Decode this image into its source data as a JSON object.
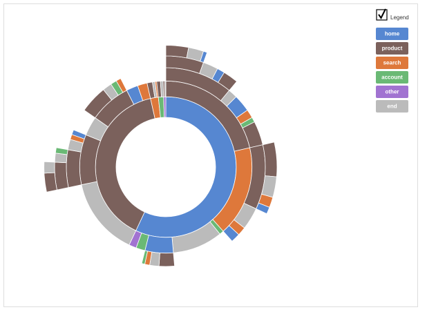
{
  "chart_data": {
    "type": "sunburst",
    "legend_title": "Legend",
    "legend": true,
    "categories": [
      "home",
      "product",
      "search",
      "account",
      "other",
      "end"
    ],
    "colors": [
      "#5687d1",
      "#7b615c",
      "#de783b",
      "#6ab975",
      "#a173d1",
      "#bbbbbb"
    ],
    "children": [
      {
        "name": "home",
        "value": 57,
        "children": [
          {
            "name": "product",
            "value": 21.4,
            "children": [
              {
                "name": "product",
                "value": 11,
                "children": [
                  {
                    "name": "product",
                    "value": 5.5,
                    "children": [
                      {
                        "name": "product",
                        "value": 3
                      },
                      {
                        "name": "end",
                        "value": 2
                      },
                      {
                        "name": "home",
                        "value": 0.5
                      }
                    ]
                  },
                  {
                    "name": "end",
                    "value": 2.2
                  },
                  {
                    "name": "home",
                    "value": 1.1
                  },
                  {
                    "name": "product",
                    "value": 2.2
                  }
                ]
              },
              {
                "name": "end",
                "value": 1.5
              },
              {
                "name": "home",
                "value": 2.8
              },
              {
                "name": "search",
                "value": 1.4
              },
              {
                "name": "account",
                "value": 0.8
              },
              {
                "name": "product",
                "value": 3.9
              }
            ]
          },
          {
            "name": "search",
            "value": 17,
            "children": [
              {
                "name": "product",
                "value": 10.5,
                "children": [
                  {
                    "name": "product",
                    "value": 5
                  },
                  {
                    "name": "end",
                    "value": 3
                  },
                  {
                    "name": "search",
                    "value": 1.5
                  },
                  {
                    "name": "home",
                    "value": 1
                  }
                ]
              },
              {
                "name": "end",
                "value": 3.6
              },
              {
                "name": "search",
                "value": 1.4
              },
              {
                "name": "home",
                "value": 1.5
              }
            ]
          },
          {
            "name": "account",
            "value": 0.8
          },
          {
            "name": "end",
            "value": 9.4
          },
          {
            "name": "home",
            "value": 5.3,
            "children": [
              {
                "name": "product",
                "value": 2.5
              },
              {
                "name": "end",
                "value": 1.5
              },
              {
                "name": "search",
                "value": 0.8
              },
              {
                "name": "account",
                "value": 0.5
              }
            ]
          },
          {
            "name": "account",
            "value": 1.7
          },
          {
            "name": "other",
            "value": 1.4
          }
        ]
      },
      {
        "name": "product",
        "value": 39.5,
        "children": [
          {
            "name": "end",
            "value": 14.7
          },
          {
            "name": "product",
            "value": 9.4,
            "children": [
              {
                "name": "product",
                "value": 6.1,
                "children": [
                  {
                    "name": "product",
                    "value": 4,
                    "children": [
                      {
                        "name": "product",
                        "value": 2.5
                      },
                      {
                        "name": "end",
                        "value": 1.5
                      }
                    ]
                  },
                  {
                    "name": "end",
                    "value": 1.3
                  },
                  {
                    "name": "account",
                    "value": 0.8
                  }
                ]
              },
              {
                "name": "end",
                "value": 1.7
              },
              {
                "name": "search",
                "value": 0.8
              },
              {
                "name": "home",
                "value": 0.8
              }
            ]
          },
          {
            "name": "end",
            "value": 3.6
          },
          {
            "name": "product",
            "value": 7.8,
            "children": [
              {
                "name": "product",
                "value": 4.5
              },
              {
                "name": "end",
                "value": 1.5
              },
              {
                "name": "account",
                "value": 1
              },
              {
                "name": "search",
                "value": 0.8
              }
            ]
          },
          {
            "name": "home",
            "value": 2.2
          },
          {
            "name": "search",
            "value": 1.8
          }
        ]
      },
      {
        "name": "search",
        "value": 1.8,
        "children": [
          {
            "name": "product",
            "value": 1
          },
          {
            "name": "end",
            "value": 0.5
          },
          {
            "name": "search",
            "value": 0.3
          }
        ]
      },
      {
        "name": "account",
        "value": 1.2,
        "children": [
          {
            "name": "product",
            "value": 0.7
          },
          {
            "name": "end",
            "value": 0.5
          }
        ]
      },
      {
        "name": "other",
        "value": 0.5,
        "children": [
          {
            "name": "product",
            "value": 0.3
          },
          {
            "name": "end",
            "value": 0.2
          }
        ]
      }
    ]
  }
}
